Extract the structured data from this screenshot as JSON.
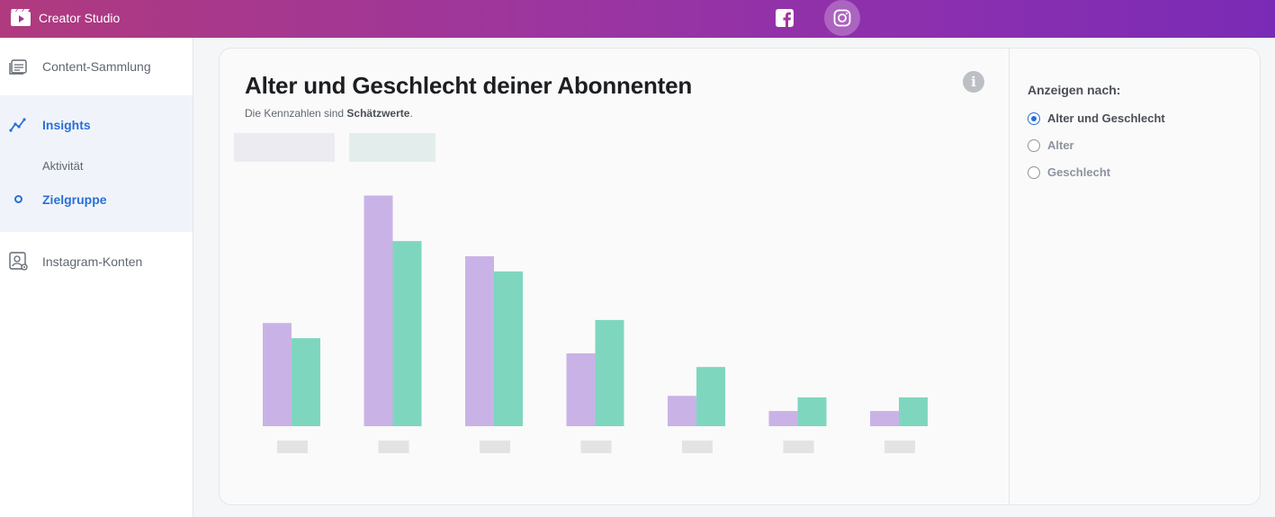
{
  "app": {
    "title": "Creator Studio"
  },
  "platforms": [
    {
      "name": "facebook-icon"
    },
    {
      "name": "instagram-icon",
      "active": true
    }
  ],
  "sidebar": {
    "items": [
      {
        "label": "Content-Sammlung",
        "icon": "content-library-icon"
      },
      {
        "label": "Insights",
        "icon": "insights-trend-icon",
        "active": true
      },
      {
        "label": "Aktivität"
      },
      {
        "label": "Zielgruppe",
        "active": true
      },
      {
        "label": "Instagram-Konten",
        "icon": "account-settings-icon"
      }
    ]
  },
  "card": {
    "title": "Alter und Geschlecht deiner Abonnenten",
    "subtitle_prefix": "Die Kennzahlen sind ",
    "subtitle_bold": "Schätzwerte",
    "subtitle_suffix": "."
  },
  "options": {
    "title": "Anzeigen nach:",
    "items": [
      {
        "label": "Alter und Geschlecht",
        "checked": true
      },
      {
        "label": "Alter",
        "checked": false
      },
      {
        "label": "Geschlecht",
        "checked": false
      }
    ]
  },
  "colors": {
    "accent": "#2a6fd6",
    "female": "#c9b3e6",
    "male": "#7fd6bf"
  },
  "chart_data": {
    "type": "bar",
    "categories": [
      "",
      "",
      "",
      "",
      "",
      "",
      ""
    ],
    "series": [
      {
        "values": [
          6.8,
          15.2,
          11.2,
          4.8,
          2.0,
          1.0,
          1.0
        ]
      },
      {
        "values": [
          5.8,
          12.2,
          10.2,
          7.0,
          3.9,
          1.9,
          1.9
        ]
      }
    ],
    "ylim": [
      0,
      16
    ],
    "grid": false
  }
}
